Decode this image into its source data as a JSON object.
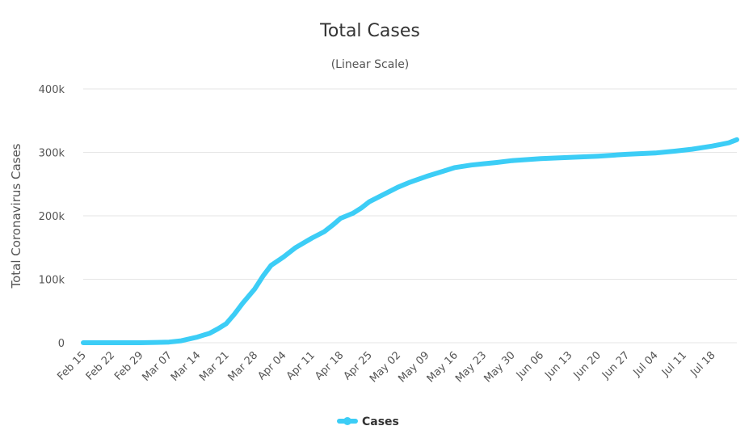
{
  "chart_data": {
    "type": "line",
    "title": "Total Cases",
    "subtitle": "(Linear Scale)",
    "xlabel": "",
    "ylabel": "Total Coronavirus Cases",
    "ylim": [
      0,
      400000
    ],
    "y_ticks": [
      {
        "value": 0,
        "label": "0"
      },
      {
        "value": 100000,
        "label": "100k"
      },
      {
        "value": 200000,
        "label": "200k"
      },
      {
        "value": 300000,
        "label": "300k"
      },
      {
        "value": 400000,
        "label": "400k"
      }
    ],
    "x_ticks": [
      "Feb 15",
      "Feb 22",
      "Feb 29",
      "Mar 07",
      "Mar 14",
      "Mar 21",
      "Mar 28",
      "Apr 04",
      "Apr 11",
      "Apr 18",
      "Apr 25",
      "May 02",
      "May 09",
      "May 16",
      "May 23",
      "May 30",
      "Jun 06",
      "Jun 13",
      "Jun 20",
      "Jun 27",
      "Jul 04",
      "Jul 11",
      "Jul 18"
    ],
    "grid": true,
    "legend_position": "bottom-center",
    "color": "#3ccdf6",
    "series": [
      {
        "name": "Cases",
        "x": [
          "Feb 15",
          "Feb 22",
          "Feb 29",
          "Mar 04",
          "Mar 07",
          "Mar 10",
          "Mar 14",
          "Mar 17",
          "Mar 19",
          "Mar 21",
          "Mar 23",
          "Mar 25",
          "Mar 28",
          "Mar 30",
          "Apr 01",
          "Apr 04",
          "Apr 07",
          "Apr 11",
          "Apr 14",
          "Apr 16",
          "Apr 18",
          "Apr 21",
          "Apr 23",
          "Apr 25",
          "Apr 28",
          "May 02",
          "May 05",
          "May 09",
          "May 13",
          "May 16",
          "May 20",
          "May 23",
          "May 26",
          "May 30",
          "Jun 06",
          "Jun 13",
          "Jun 20",
          "Jun 27",
          "Jul 04",
          "Jul 09",
          "Jul 13",
          "Jul 18",
          "Jul 22",
          "Jul 24"
        ],
        "values": [
          0,
          0,
          0,
          500,
          1000,
          3000,
          9000,
          15000,
          22000,
          30000,
          45000,
          62000,
          85000,
          105000,
          122000,
          135000,
          150000,
          165000,
          175000,
          185000,
          196000,
          204000,
          212000,
          222000,
          232000,
          245000,
          253000,
          262000,
          270000,
          276000,
          280000,
          282000,
          284000,
          287000,
          290000,
          292000,
          294000,
          297000,
          299000,
          302000,
          305000,
          310000,
          315000,
          320000
        ]
      }
    ]
  }
}
